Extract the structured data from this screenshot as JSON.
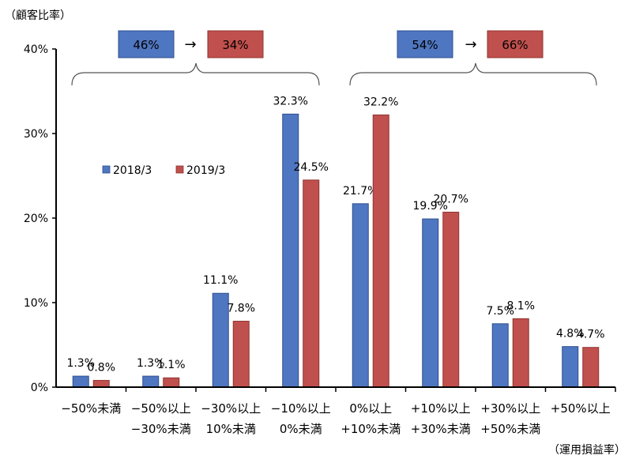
{
  "chart_data": {
    "type": "bar",
    "y_unit_label": "（顧客比率）",
    "x_unit_label": "（運用損益率）",
    "ylim": [
      0,
      40
    ],
    "yticks": [
      "0%",
      "10%",
      "20%",
      "30%",
      "40%"
    ],
    "categories": [
      [
        "−50%未満",
        ""
      ],
      [
        "−50%以上",
        "−30%未満"
      ],
      [
        "−30%以上",
        "10%未満"
      ],
      [
        "−10%以上",
        "0%未満"
      ],
      [
        "0%以上",
        "+10%未満"
      ],
      [
        "+10%以上",
        "+30%未満"
      ],
      [
        "+30%以上",
        "+50%未満"
      ],
      [
        "+50%以上",
        ""
      ]
    ],
    "series": [
      {
        "name": "2018/3",
        "color": "#4f76c0",
        "values": [
          1.3,
          1.3,
          11.1,
          32.3,
          21.7,
          19.9,
          7.5,
          4.8
        ],
        "labels": [
          "1.3%",
          "1.3%",
          "11.1%",
          "32.3%",
          "21.7%",
          "19.9%",
          "7.5%",
          "4.8%"
        ]
      },
      {
        "name": "2019/3",
        "color": "#c0504d",
        "values": [
          0.8,
          1.1,
          7.8,
          24.5,
          32.2,
          20.7,
          8.1,
          4.7
        ],
        "labels": [
          "0.8%",
          "1.1%",
          "7.8%",
          "24.5%",
          "32.2%",
          "20.7%",
          "8.1%",
          "4.7%"
        ]
      }
    ],
    "legend_position": "middle-left",
    "annotations": {
      "loss_group": {
        "from": "46%",
        "to": "34%"
      },
      "gain_group": {
        "from": "54%",
        "to": "66%"
      },
      "arrow": "→"
    }
  }
}
